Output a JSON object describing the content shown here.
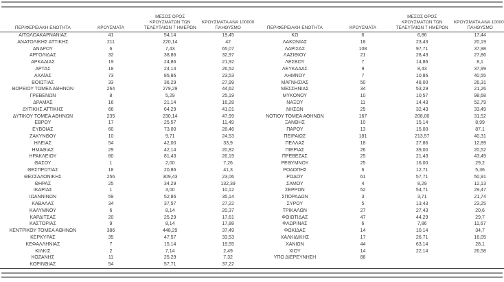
{
  "header": {
    "region": "ΠΕΡΙΦΕΡΕΙΑΚΗ ΕΝΟΤΗΤΑ",
    "cases": "ΚΡΟΥΣΜΑΤΑ",
    "avg7": "ΜΕΣΟΣ ΟΡΟΣ\nΚΡΟΥΣΜΑΤΩΝ ΤΩΝ\nΤΕΛΕΥΤΑΙΩΝ 7 ΗΜΕΡΩΝ",
    "per100k": "ΚΡΟΥΣΜΑΤΑ ΑΝΑ 100000\nΠΛΗΘΥΣΜΟ"
  },
  "tables": [
    {
      "rows": [
        [
          "ΑΙΤΩΛΟΑΚΑΡΝΑΝΙΑΣ",
          "41",
          "54,14",
          "19,45"
        ],
        [
          "ΑΝΑΤΟΛΙΚΗΣ ΑΤΤΙΚΗΣ",
          "211",
          "220,14",
          "42"
        ],
        [
          "ΑΝΔΡΟΥ",
          "6",
          "7,43",
          "65,07"
        ],
        [
          "ΑΡΓΟΛΙΔΑΣ",
          "32",
          "38,86",
          "32,97"
        ],
        [
          "ΑΡΚΑΔΙΑΣ",
          "19",
          "24,86",
          "21,92"
        ],
        [
          "ΑΡΤΑΣ",
          "18",
          "24,14",
          "26,52"
        ],
        [
          "ΑΧΑΪΑΣ",
          "73",
          "85,86",
          "23,53"
        ],
        [
          "ΒΟΙΩΤΙΑΣ",
          "33",
          "36,29",
          "27,99"
        ],
        [
          "ΒΟΡΕΙΟΥ ΤΟΜΕΑ ΑΘΗΝΩΝ",
          "264",
          "279,29",
          "44,62"
        ],
        [
          "ΓΡΕΒΕΝΩΝ",
          "8",
          "5,29",
          "25,19"
        ],
        [
          "ΔΡΑΜΑΣ",
          "16",
          "21,14",
          "16,28"
        ],
        [
          "ΔΥΤΙΚΗΣ ΑΤΤΙΚΗΣ",
          "66",
          "64,29",
          "41,01"
        ],
        [
          "ΔΥΤΙΚΟΥ ΤΟΜΕΑ ΑΘΗΝΩΝ",
          "235",
          "230,14",
          "47,99"
        ],
        [
          "ΕΒΡΟΥ",
          "17",
          "25,57",
          "11,49"
        ],
        [
          "ΕΥΒΟΙΑΣ",
          "60",
          "73,00",
          "28,46"
        ],
        [
          "ΖΑΚΥΝΘΟΥ",
          "10",
          "9,71",
          "24,53"
        ],
        [
          "ΗΛΕΙΑΣ",
          "54",
          "42,00",
          "33,9"
        ],
        [
          "ΗΜΑΘΙΑΣ",
          "29",
          "42,14",
          "20,82"
        ],
        [
          "ΗΡΑΚΛΕΙΟΥ",
          "80",
          "81,43",
          "26,19"
        ],
        [
          "ΘΑΣΟΥ",
          "1",
          "2,00",
          "7,26"
        ],
        [
          "ΘΕΣΠΡΩΤΙΑΣ",
          "18",
          "20,86",
          "41,3"
        ],
        [
          "ΘΕΣΣΑΛΟΝΙΚΗΣ",
          "256",
          "309,43",
          "23,06"
        ],
        [
          "ΘΗΡΑΣ",
          "25",
          "34,29",
          "132,39"
        ],
        [
          "ΙΚΑΡΙΑΣ",
          "1",
          "3,00",
          "10,12"
        ],
        [
          "ΙΩΑΝΝΙΝΩΝ",
          "59",
          "52,86",
          "35,14"
        ],
        [
          "ΚΑΒΑΛΑΣ",
          "34",
          "37,57",
          "27,22"
        ],
        [
          "ΚΑΛΥΜΝΟΥ",
          "6",
          "8,14",
          "20,37"
        ],
        [
          "ΚΑΡΔΙΤΣΑΣ",
          "20",
          "25,29",
          "17,61"
        ],
        [
          "ΚΑΣΤΟΡΙΑΣ",
          "9",
          "8,14",
          "17,88"
        ],
        [
          "ΚΕΝΤΡΙΚΟΥ ΤΟΜΕΑ ΑΘΗΝΩΝ",
          "386",
          "448,29",
          "37,49"
        ],
        [
          "ΚΕΡΚΥΡΑΣ",
          "35",
          "47,57",
          "33,53"
        ],
        [
          "ΚΕΦΑΛΛΗΝΙΑΣ",
          "7",
          "15,14",
          "19,55"
        ],
        [
          "ΚΙΛΚΙΣ",
          "2",
          "7,14",
          "2,49"
        ],
        [
          "ΚΟΖΑΝΗΣ",
          "11",
          "25,29",
          "7,32"
        ],
        [
          "ΚΟΡΙΝΘΙΑΣ",
          "54",
          "57,71",
          "37,22"
        ]
      ]
    },
    {
      "rows": [
        [
          "ΚΩ",
          "6",
          "6,86",
          "17,44"
        ],
        [
          "ΛΑΚΩΝΙΑΣ",
          "18",
          "23,43",
          "20,19"
        ],
        [
          "ΛΑΡΙΣΑΣ",
          "108",
          "97,71",
          "37,98"
        ],
        [
          "ΛΑΣΙΘΙΟΥ",
          "21",
          "28,43",
          "27,86"
        ],
        [
          "ΛΕΣΒΟΥ",
          "7",
          "14,86",
          "8,1"
        ],
        [
          "ΛΕΥΚΑΔΑΣ",
          "9",
          "8,43",
          "37,99"
        ],
        [
          "ΛΗΜΝΟΥ",
          "7",
          "10,86",
          "40,55"
        ],
        [
          "ΜΑΓΝΗΣΙΑΣ",
          "50",
          "48,00",
          "26,31"
        ],
        [
          "ΜΕΣΣΗΝΙΑΣ",
          "34",
          "53,29",
          "21,26"
        ],
        [
          "ΜΥΚΟΝΟΥ",
          "10",
          "10,57",
          "98,68"
        ],
        [
          "ΝΑΞΟΥ",
          "11",
          "14,43",
          "52,79"
        ],
        [
          "ΝΗΣΩΝ",
          "25",
          "32,43",
          "33,49"
        ],
        [
          "ΝΟΤΙΟΥ ΤΟΜΕΑ ΑΘΗΝΩΝ",
          "167",
          "208,00",
          "31,52"
        ],
        [
          "ΞΑΝΘΗΣ",
          "10",
          "15,14",
          "8,99"
        ],
        [
          "ΠΑΡΟΥ",
          "13",
          "15,00",
          "87,1"
        ],
        [
          "ΠΕΙΡΑΙΩΣ",
          "181",
          "213,57",
          "40,31"
        ],
        [
          "ΠΕΛΛΑΣ",
          "18",
          "27,86",
          "12,89"
        ],
        [
          "ΠΙΕΡΙΑΣ",
          "26",
          "39,00",
          "20,52"
        ],
        [
          "ΠΡΕΒΕΖΑΣ",
          "25",
          "21,43",
          "43,49"
        ],
        [
          "ΡΕΘΥΜΝΟΥ",
          "25",
          "16,00",
          "29,2"
        ],
        [
          "ΡΟΔΟΠΗΣ",
          "6",
          "12,71",
          "5,36"
        ],
        [
          "ΡΟΔΟΥ",
          "61",
          "57,71",
          "50,91"
        ],
        [
          "ΣΑΜΟΥ",
          "4",
          "8,29",
          "12,13"
        ],
        [
          "ΣΕΡΡΩΝ",
          "52",
          "54,71",
          "29,47"
        ],
        [
          "ΣΠΟΡΑΔΩΝ",
          "3",
          "3,71",
          "21,74"
        ],
        [
          "ΣΥΡΟΥ",
          "5",
          "13,43",
          "23,25"
        ],
        [
          "ΤΡΙΚΑΛΩΝ",
          "27",
          "27,43",
          "20,6"
        ],
        [
          "ΦΘΙΩΤΙΔΑΣ",
          "47",
          "44,29",
          "29,7"
        ],
        [
          "ΦΛΩΡΙΝΑΣ",
          "6",
          "7,86",
          "11,67"
        ],
        [
          "ΦΩΚΙΔΑΣ",
          "14",
          "10,14",
          "34,7"
        ],
        [
          "ΧΑΛΚΙΔΙΚΗΣ",
          "17",
          "26,71",
          "16,05"
        ],
        [
          "ΧΑΝΙΩΝ",
          "44",
          "63,14",
          "28,1"
        ],
        [
          "ΧΙΟΥ",
          "14",
          "22,14",
          "26,58"
        ],
        [
          "ΥΠΟ ΔΙΕΡΕΥΝΗΣΗ",
          "88",
          "",
          ""
        ]
      ]
    }
  ]
}
